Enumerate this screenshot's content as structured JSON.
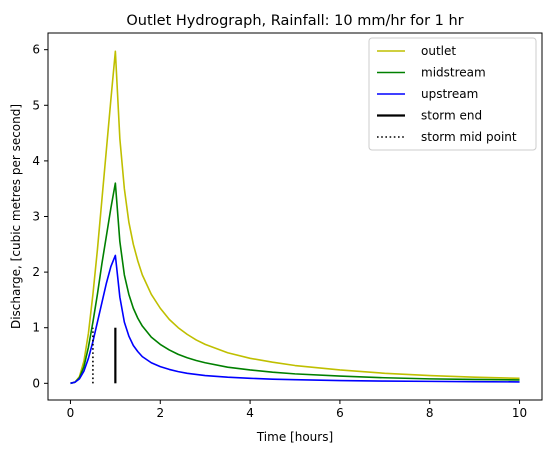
{
  "chart_data": {
    "type": "line",
    "title": "Outlet Hydrograph, Rainfall: 10 mm/hr for 1 hr",
    "xlabel": "Time [hours]",
    "ylabel": "Discharge, [cubic metres per second]",
    "xlim": [
      -0.5,
      10.5
    ],
    "ylim": [
      -0.3,
      6.3
    ],
    "xticks": [
      0,
      2,
      4,
      6,
      8,
      10
    ],
    "yticks": [
      0,
      1,
      2,
      3,
      4,
      5,
      6
    ],
    "grid": false,
    "legend_position": "top-right",
    "series": [
      {
        "name": "outlet",
        "color": "#bfbf00",
        "style": "solid",
        "points": [
          [
            0,
            0
          ],
          [
            0.1,
            0.02
          ],
          [
            0.2,
            0.12
          ],
          [
            0.3,
            0.4
          ],
          [
            0.4,
            0.9
          ],
          [
            0.5,
            1.6
          ],
          [
            0.6,
            2.4
          ],
          [
            0.7,
            3.3
          ],
          [
            0.8,
            4.2
          ],
          [
            0.9,
            5.1
          ],
          [
            1.0,
            5.97
          ],
          [
            1.1,
            4.4
          ],
          [
            1.2,
            3.5
          ],
          [
            1.3,
            2.9
          ],
          [
            1.4,
            2.5
          ],
          [
            1.5,
            2.2
          ],
          [
            1.6,
            1.95
          ],
          [
            1.8,
            1.6
          ],
          [
            2.0,
            1.35
          ],
          [
            2.2,
            1.15
          ],
          [
            2.4,
            1.0
          ],
          [
            2.6,
            0.88
          ],
          [
            2.8,
            0.78
          ],
          [
            3.0,
            0.7
          ],
          [
            3.5,
            0.55
          ],
          [
            4.0,
            0.45
          ],
          [
            4.5,
            0.38
          ],
          [
            5.0,
            0.32
          ],
          [
            6.0,
            0.24
          ],
          [
            7.0,
            0.18
          ],
          [
            8.0,
            0.14
          ],
          [
            9.0,
            0.11
          ],
          [
            10.0,
            0.09
          ]
        ]
      },
      {
        "name": "midstream",
        "color": "#008000",
        "style": "solid",
        "points": [
          [
            0,
            0
          ],
          [
            0.1,
            0.02
          ],
          [
            0.2,
            0.1
          ],
          [
            0.3,
            0.3
          ],
          [
            0.4,
            0.65
          ],
          [
            0.5,
            1.1
          ],
          [
            0.6,
            1.6
          ],
          [
            0.7,
            2.15
          ],
          [
            0.8,
            2.65
          ],
          [
            0.9,
            3.15
          ],
          [
            1.0,
            3.6
          ],
          [
            1.1,
            2.55
          ],
          [
            1.2,
            1.95
          ],
          [
            1.3,
            1.6
          ],
          [
            1.4,
            1.35
          ],
          [
            1.5,
            1.17
          ],
          [
            1.6,
            1.03
          ],
          [
            1.8,
            0.83
          ],
          [
            2.0,
            0.7
          ],
          [
            2.2,
            0.6
          ],
          [
            2.4,
            0.52
          ],
          [
            2.6,
            0.46
          ],
          [
            2.8,
            0.41
          ],
          [
            3.0,
            0.37
          ],
          [
            3.5,
            0.29
          ],
          [
            4.0,
            0.24
          ],
          [
            4.5,
            0.2
          ],
          [
            5.0,
            0.17
          ],
          [
            6.0,
            0.13
          ],
          [
            7.0,
            0.1
          ],
          [
            8.0,
            0.08
          ],
          [
            9.0,
            0.07
          ],
          [
            10.0,
            0.06
          ]
        ]
      },
      {
        "name": "upstream",
        "color": "#0000ff",
        "style": "solid",
        "points": [
          [
            0,
            0
          ],
          [
            0.1,
            0.02
          ],
          [
            0.2,
            0.08
          ],
          [
            0.3,
            0.22
          ],
          [
            0.4,
            0.45
          ],
          [
            0.5,
            0.75
          ],
          [
            0.6,
            1.1
          ],
          [
            0.7,
            1.45
          ],
          [
            0.8,
            1.8
          ],
          [
            0.9,
            2.1
          ],
          [
            1.0,
            2.3
          ],
          [
            1.1,
            1.55
          ],
          [
            1.2,
            1.1
          ],
          [
            1.3,
            0.85
          ],
          [
            1.4,
            0.68
          ],
          [
            1.5,
            0.57
          ],
          [
            1.6,
            0.48
          ],
          [
            1.8,
            0.37
          ],
          [
            2.0,
            0.3
          ],
          [
            2.2,
            0.25
          ],
          [
            2.4,
            0.21
          ],
          [
            2.6,
            0.18
          ],
          [
            2.8,
            0.16
          ],
          [
            3.0,
            0.14
          ],
          [
            3.5,
            0.11
          ],
          [
            4.0,
            0.09
          ],
          [
            4.5,
            0.075
          ],
          [
            5.0,
            0.065
          ],
          [
            6.0,
            0.05
          ],
          [
            7.0,
            0.04
          ],
          [
            8.0,
            0.035
          ],
          [
            9.0,
            0.03
          ],
          [
            10.0,
            0.025
          ]
        ]
      },
      {
        "name": "storm end",
        "color": "#000000",
        "style": "solid-thick",
        "points": [
          [
            1.0,
            0
          ],
          [
            1.0,
            1.0
          ]
        ]
      },
      {
        "name": "storm mid point",
        "color": "#000000",
        "style": "dotted",
        "points": [
          [
            0.5,
            0
          ],
          [
            0.5,
            1.0
          ]
        ]
      }
    ]
  }
}
